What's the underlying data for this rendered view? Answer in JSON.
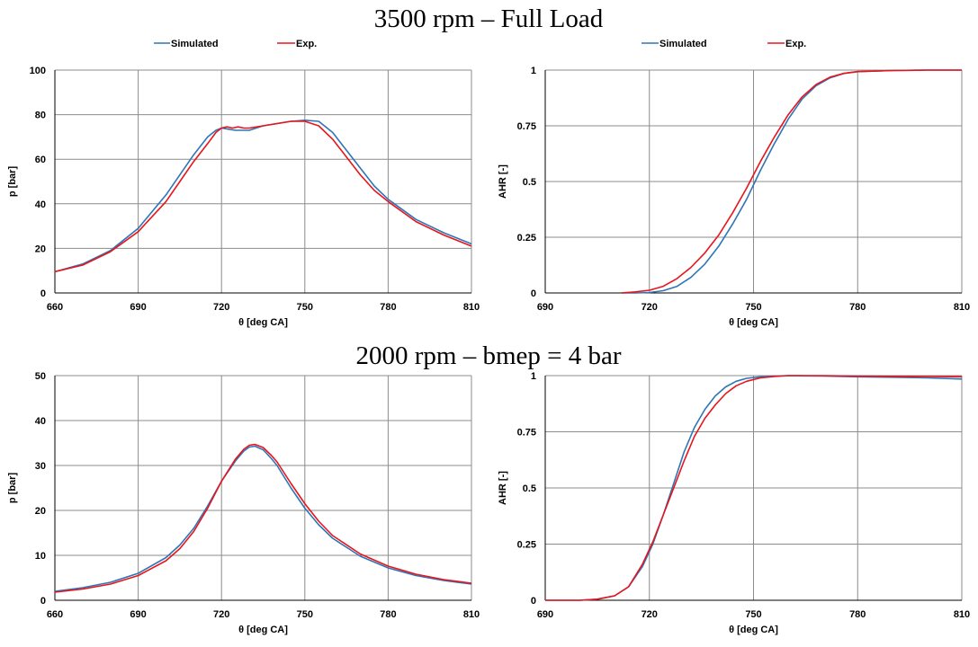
{
  "headers": [
    "3500 rpm – Full Load",
    "2000 rpm – bmep = 4 bar"
  ],
  "colors": {
    "simulated": "#2e75b6",
    "exp": "#e8141b",
    "grid": "#8c8c8c",
    "axis": "#000000"
  },
  "legend": [
    "Simulated",
    "Exp."
  ],
  "chart_data": [
    {
      "type": "line",
      "xlabel": "θ [deg CA]",
      "ylabel": "p [bar]",
      "xlim": [
        660,
        810
      ],
      "ylim": [
        0,
        100
      ],
      "xticks": [
        660,
        690,
        720,
        750,
        780,
        810
      ],
      "yticks": [
        0,
        20,
        40,
        60,
        80,
        100
      ],
      "ytick_labels": [
        "0",
        "20",
        "40",
        "60",
        "80",
        "100"
      ],
      "legend": "top",
      "grid": true,
      "series": [
        {
          "name": "Simulated",
          "x": [
            660,
            670,
            680,
            690,
            700,
            705,
            710,
            715,
            718,
            720,
            725,
            730,
            735,
            740,
            745,
            750,
            755,
            760,
            765,
            770,
            775,
            780,
            790,
            800,
            810
          ],
          "y": [
            9.5,
            13,
            19,
            29,
            44,
            53,
            62,
            70,
            73,
            74,
            73,
            73,
            75,
            76,
            77,
            77.5,
            77,
            72,
            64,
            56,
            48,
            42,
            33,
            27,
            22
          ]
        },
        {
          "name": "Exp.",
          "x": [
            660,
            670,
            680,
            690,
            700,
            705,
            710,
            715,
            718,
            720,
            722,
            724,
            726,
            728,
            730,
            735,
            740,
            745,
            750,
            755,
            760,
            765,
            770,
            775,
            780,
            790,
            800,
            810
          ],
          "y": [
            9.5,
            12.5,
            18.5,
            27.5,
            41,
            50,
            59,
            67,
            72,
            74,
            74.5,
            74,
            74.5,
            74,
            74,
            75,
            76,
            77,
            77,
            75,
            69,
            61,
            53,
            46,
            41,
            32,
            26,
            21
          ]
        }
      ]
    },
    {
      "type": "line",
      "xlabel": "θ [deg CA]",
      "ylabel": "AHR [-]",
      "xlim": [
        690,
        810
      ],
      "ylim": [
        0,
        1
      ],
      "xticks": [
        690,
        720,
        750,
        780,
        810
      ],
      "yticks": [
        0,
        0.25,
        0.5,
        0.75,
        1
      ],
      "ytick_labels": [
        "0",
        "0.25",
        "0.5",
        "0.75",
        "1"
      ],
      "legend": "top",
      "grid": true,
      "series": [
        {
          "name": "Simulated",
          "x": [
            712,
            716,
            720,
            724,
            728,
            732,
            736,
            740,
            744,
            748,
            752,
            756,
            760,
            764,
            768,
            772,
            776,
            780,
            790,
            800,
            810
          ],
          "y": [
            0,
            0,
            0.002,
            0.01,
            0.03,
            0.07,
            0.13,
            0.21,
            0.31,
            0.42,
            0.55,
            0.67,
            0.78,
            0.87,
            0.93,
            0.965,
            0.985,
            0.993,
            0.998,
            1.0,
            1.0
          ]
        },
        {
          "name": "Exp.",
          "x": [
            712,
            716,
            720,
            724,
            728,
            732,
            736,
            740,
            744,
            748,
            752,
            756,
            760,
            764,
            768,
            772,
            776,
            780,
            790,
            800,
            810
          ],
          "y": [
            0,
            0.005,
            0.012,
            0.03,
            0.065,
            0.115,
            0.18,
            0.26,
            0.36,
            0.47,
            0.59,
            0.7,
            0.8,
            0.88,
            0.935,
            0.968,
            0.985,
            0.993,
            0.998,
            1.0,
            1.0
          ]
        }
      ]
    },
    {
      "type": "line",
      "xlabel": "θ [deg CA]",
      "ylabel": "p [bar]",
      "xlim": [
        660,
        810
      ],
      "ylim": [
        0,
        50
      ],
      "xticks": [
        660,
        690,
        720,
        750,
        780,
        810
      ],
      "yticks": [
        0,
        10,
        20,
        30,
        40,
        50
      ],
      "ytick_labels": [
        "0",
        "10",
        "20",
        "30",
        "40",
        "50"
      ],
      "grid": true,
      "series": [
        {
          "name": "Simulated",
          "x": [
            660,
            670,
            680,
            690,
            700,
            705,
            710,
            715,
            720,
            725,
            728,
            730,
            732,
            735,
            738,
            740,
            745,
            750,
            755,
            760,
            770,
            780,
            790,
            800,
            810
          ],
          "y": [
            2,
            2.8,
            4,
            6,
            9.5,
            12.3,
            16,
            21,
            26.5,
            31,
            33.2,
            34.1,
            34.3,
            33.5,
            31.5,
            30,
            25,
            20.5,
            16.8,
            13.8,
            9.8,
            7.2,
            5.5,
            4.4,
            3.6
          ]
        },
        {
          "name": "Exp.",
          "x": [
            660,
            670,
            680,
            690,
            700,
            705,
            710,
            715,
            720,
            725,
            728,
            730,
            732,
            735,
            738,
            740,
            745,
            750,
            755,
            760,
            770,
            780,
            790,
            800,
            810
          ],
          "y": [
            1.8,
            2.5,
            3.6,
            5.5,
            8.8,
            11.5,
            15.3,
            20.5,
            26.5,
            31.4,
            33.6,
            34.5,
            34.7,
            34,
            32.2,
            30.8,
            26,
            21.5,
            17.6,
            14.4,
            10.3,
            7.6,
            5.8,
            4.6,
            3.8
          ]
        }
      ]
    },
    {
      "type": "line",
      "xlabel": "θ [deg CA]",
      "ylabel": "AHR [-]",
      "xlim": [
        690,
        810
      ],
      "ylim": [
        0,
        1
      ],
      "xticks": [
        690,
        720,
        750,
        780,
        810
      ],
      "yticks": [
        0,
        0.25,
        0.5,
        0.75,
        1
      ],
      "ytick_labels": [
        "0",
        "0.25",
        "0.5",
        "0.75",
        "1"
      ],
      "grid": true,
      "series": [
        {
          "name": "Simulated",
          "x": [
            690,
            700,
            705,
            710,
            714,
            718,
            721,
            724,
            727,
            730,
            733,
            736,
            739,
            742,
            745,
            748,
            752,
            756,
            760,
            770,
            780,
            790,
            800,
            810
          ],
          "y": [
            0,
            0,
            0.005,
            0.02,
            0.06,
            0.15,
            0.25,
            0.38,
            0.52,
            0.66,
            0.77,
            0.85,
            0.91,
            0.95,
            0.975,
            0.988,
            0.995,
            0.998,
            1.0,
            0.998,
            0.995,
            0.993,
            0.99,
            0.985
          ]
        },
        {
          "name": "Exp.",
          "x": [
            690,
            700,
            705,
            710,
            714,
            718,
            721,
            724,
            727,
            730,
            733,
            736,
            739,
            742,
            745,
            748,
            752,
            756,
            760,
            770,
            780,
            790,
            800,
            810
          ],
          "y": [
            0,
            0,
            0.005,
            0.02,
            0.06,
            0.16,
            0.26,
            0.38,
            0.5,
            0.62,
            0.73,
            0.81,
            0.87,
            0.92,
            0.955,
            0.975,
            0.99,
            0.996,
            1.0,
            1.0,
            0.998,
            0.997,
            0.996,
            0.995
          ]
        }
      ]
    }
  ]
}
